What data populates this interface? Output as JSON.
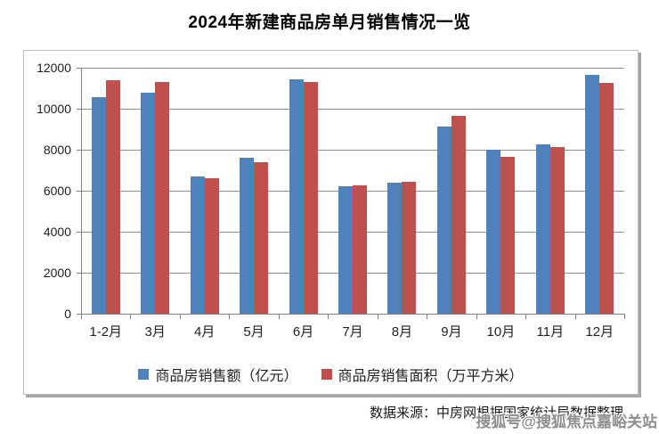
{
  "page": {
    "title": "2024年新建商品房单月销售情况一览",
    "source_note": "数据来源：中房网根据国家统计局数据整理",
    "watermark": "搜狐号@搜狐焦点嘉峪关站"
  },
  "colors": {
    "series_amount": "#4F81BD",
    "series_area": "#C0504D",
    "gridline": "#8f8f8f",
    "axis": "#7f7f7f"
  },
  "chart_data": {
    "type": "bar",
    "title": "2024年新建商品房单月销售情况一览",
    "categories": [
      "1-2月",
      "3月",
      "4月",
      "5月",
      "6月",
      "7月",
      "8月",
      "9月",
      "10月",
      "11月",
      "12月"
    ],
    "series": [
      {
        "id": "sales-amount",
        "name": "商品房销售额（亿元）",
        "color": "#4F81BD",
        "values": [
          10550,
          10800,
          6700,
          7600,
          11450,
          6200,
          6400,
          9150,
          8000,
          8250,
          11650
        ]
      },
      {
        "id": "sales-area",
        "name": "商品房销售面积（万平方米）",
        "color": "#C0504D",
        "values": [
          11400,
          11300,
          6600,
          7400,
          11300,
          6250,
          6450,
          9650,
          7650,
          8150,
          11250
        ]
      }
    ],
    "xlabel": "",
    "ylabel": "",
    "ylim": [
      0,
      12000
    ],
    "yticks": [
      0,
      2000,
      4000,
      6000,
      8000,
      10000,
      12000
    ],
    "grid": true,
    "legend_position": "bottom"
  }
}
